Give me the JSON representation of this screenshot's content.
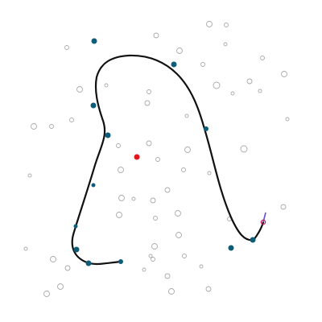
{
  "scene": {
    "background": "#ffffff",
    "path_color": "#111111",
    "marker_color": "#0e5d78",
    "center_color": "#e8141c",
    "heading_color": "#6a4fd8",
    "endpoint_ring_color": "#c2185b"
  }
}
